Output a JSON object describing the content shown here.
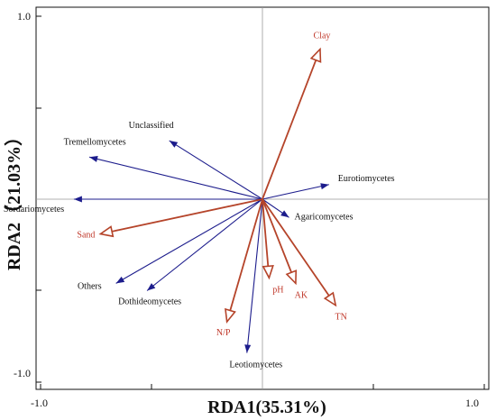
{
  "chart_data": {
    "type": "biplot",
    "xlabel": "RDA1(35.31%)",
    "ylabel": "RDA2（21.03%）",
    "xlim": [
      -1.0,
      1.0
    ],
    "ylim": [
      -1.0,
      1.0
    ],
    "x_tick_labels": [
      "-1.0",
      "1.0"
    ],
    "y_tick_labels": [
      "1.0",
      "-1.0"
    ],
    "origin_lines": true,
    "species_color": "#1c1c8c",
    "env_color": "#b5442a",
    "species": [
      {
        "name": "Unclassified",
        "x": -0.42,
        "y": 0.32
      },
      {
        "name": "Tremellomycetes",
        "x": -0.78,
        "y": 0.23
      },
      {
        "name": "Sordariomycetes",
        "x": -0.85,
        "y": 0.0
      },
      {
        "name": "Eurotiomycetes",
        "x": 0.3,
        "y": 0.08
      },
      {
        "name": "Agaricomycetes",
        "x": 0.12,
        "y": -0.1
      },
      {
        "name": "Others",
        "x": -0.66,
        "y": -0.46
      },
      {
        "name": "Dothideomycetes",
        "x": -0.52,
        "y": -0.5
      },
      {
        "name": "Leotiomycetes",
        "x": -0.07,
        "y": -0.84
      }
    ],
    "environment": [
      {
        "name": "Clay",
        "x": 0.26,
        "y": 0.82
      },
      {
        "name": "Sand",
        "x": -0.73,
        "y": -0.19
      },
      {
        "name": "pH",
        "x": 0.03,
        "y": -0.43
      },
      {
        "name": "AK",
        "x": 0.15,
        "y": -0.46
      },
      {
        "name": "TN",
        "x": 0.33,
        "y": -0.58
      },
      {
        "name": "N/P",
        "x": -0.16,
        "y": -0.67
      }
    ]
  }
}
